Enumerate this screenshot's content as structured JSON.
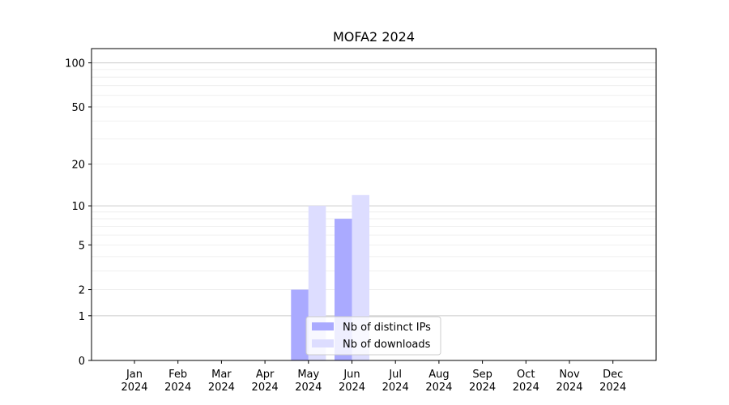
{
  "chart_data": {
    "type": "bar",
    "title": "MOFA2 2024",
    "categories": [
      [
        "Jan",
        "2024"
      ],
      [
        "Feb",
        "2024"
      ],
      [
        "Mar",
        "2024"
      ],
      [
        "Apr",
        "2024"
      ],
      [
        "May",
        "2024"
      ],
      [
        "Jun",
        "2024"
      ],
      [
        "Jul",
        "2024"
      ],
      [
        "Aug",
        "2024"
      ],
      [
        "Sep",
        "2024"
      ],
      [
        "Oct",
        "2024"
      ],
      [
        "Nov",
        "2024"
      ],
      [
        "Dec",
        "2024"
      ]
    ],
    "series": [
      {
        "name": "Nb of distinct IPs",
        "color": "#aaaaff",
        "values": [
          0,
          0,
          0,
          0,
          2,
          8,
          0,
          0,
          0,
          0,
          0,
          0
        ]
      },
      {
        "name": "Nb of downloads",
        "color": "#ddddff",
        "values": [
          0,
          0,
          0,
          0,
          10,
          12,
          0,
          0,
          0,
          0,
          0,
          0
        ]
      }
    ],
    "y_scale": "log(1+y)",
    "yticks": [
      "0",
      "1",
      "2",
      "5",
      "10",
      "20",
      "50",
      "100"
    ],
    "ytick_values": [
      0,
      1,
      2,
      5,
      10,
      20,
      50,
      100
    ],
    "ylim": [
      0,
      125
    ],
    "grid": true,
    "legend_position": "lower center"
  }
}
